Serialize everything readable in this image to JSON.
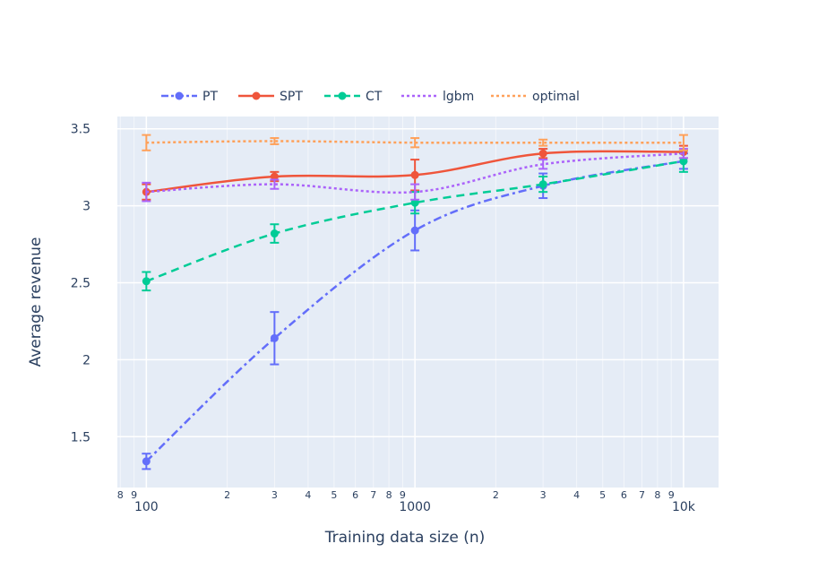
{
  "chart_data": {
    "type": "line",
    "title": "",
    "xlabel": "Training data size (n)",
    "ylabel": "Average revenue",
    "x_scale": "log",
    "xlim": [
      78,
      13500
    ],
    "ylim": [
      1.17,
      3.58
    ],
    "grid": true,
    "legend_position": "top, horizontal",
    "x_major_ticks": [
      {
        "value": 100,
        "label": "100"
      },
      {
        "value": 1000,
        "label": "1000"
      },
      {
        "value": 10000,
        "label": "10k"
      }
    ],
    "x_minor_ticks": [
      {
        "value": 80,
        "label": "8"
      },
      {
        "value": 90,
        "label": "9"
      },
      {
        "value": 200,
        "label": "2"
      },
      {
        "value": 300,
        "label": "3"
      },
      {
        "value": 400,
        "label": "4"
      },
      {
        "value": 500,
        "label": "5"
      },
      {
        "value": 600,
        "label": "6"
      },
      {
        "value": 700,
        "label": "7"
      },
      {
        "value": 800,
        "label": "8"
      },
      {
        "value": 900,
        "label": "9"
      },
      {
        "value": 2000,
        "label": "2"
      },
      {
        "value": 3000,
        "label": "3"
      },
      {
        "value": 4000,
        "label": "4"
      },
      {
        "value": 5000,
        "label": "5"
      },
      {
        "value": 6000,
        "label": "6"
      },
      {
        "value": 7000,
        "label": "7"
      },
      {
        "value": 8000,
        "label": "8"
      },
      {
        "value": 9000,
        "label": "9"
      }
    ],
    "y_ticks": [
      {
        "value": 1.5,
        "label": "1.5"
      },
      {
        "value": 2,
        "label": "2"
      },
      {
        "value": 2.5,
        "label": "2.5"
      },
      {
        "value": 3,
        "label": "3"
      },
      {
        "value": 3.5,
        "label": "3.5"
      }
    ],
    "x": [
      100,
      300,
      1000,
      3000,
      10000
    ],
    "series": [
      {
        "name": "PT",
        "color": "#636efa",
        "dash": "dashdot",
        "markers": true,
        "values": [
          1.34,
          2.14,
          2.84,
          3.13,
          3.29
        ],
        "errors": [
          0.05,
          0.17,
          0.13,
          0.08,
          0.05
        ]
      },
      {
        "name": "SPT",
        "color": "#ef553b",
        "dash": "solid",
        "markers": true,
        "values": [
          3.09,
          3.19,
          3.2,
          3.34,
          3.35
        ],
        "errors": [
          0.05,
          0.03,
          0.1,
          0.03,
          0.04
        ]
      },
      {
        "name": "CT",
        "color": "#00cc96",
        "dash": "dash",
        "markers": true,
        "values": [
          2.51,
          2.82,
          3.02,
          3.14,
          3.29
        ],
        "errors": [
          0.06,
          0.06,
          0.07,
          0.05,
          0.07
        ]
      },
      {
        "name": "lgbm",
        "color": "#ab63fa",
        "dash": "dot",
        "markers": false,
        "values": [
          3.09,
          3.14,
          3.09,
          3.27,
          3.34
        ],
        "errors": [
          0.06,
          0.03,
          0.05,
          0.03,
          0.03
        ]
      },
      {
        "name": "optimal",
        "color": "#ffa15a",
        "dash": "dot",
        "markers": false,
        "values": [
          3.41,
          3.42,
          3.41,
          3.41,
          3.41
        ],
        "errors": [
          0.05,
          0.02,
          0.03,
          0.02,
          0.05
        ]
      }
    ]
  }
}
